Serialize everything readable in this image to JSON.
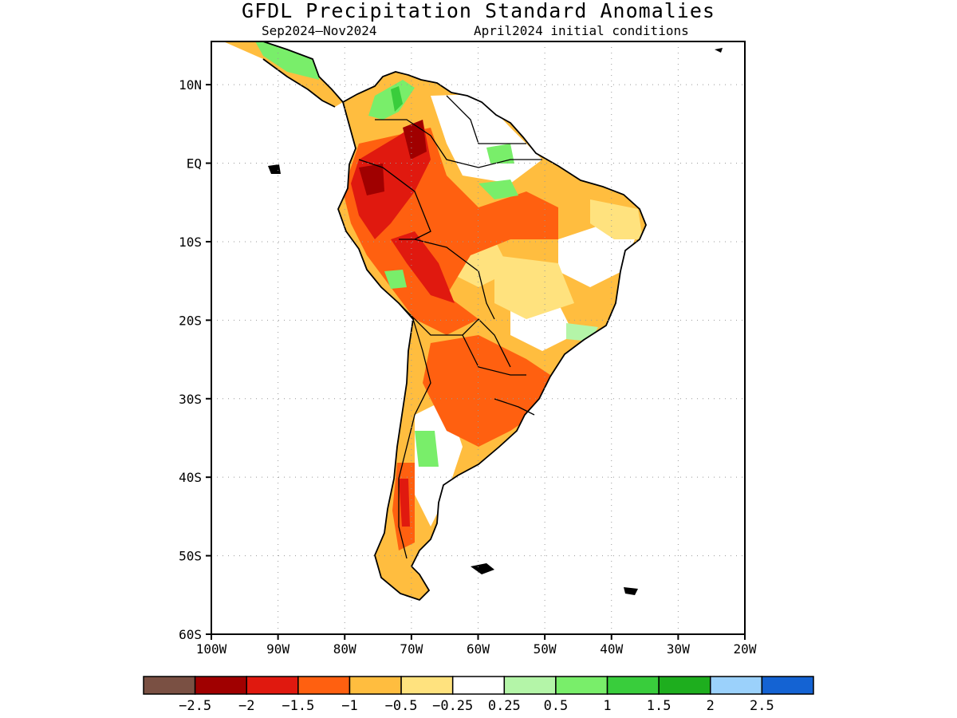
{
  "header": {
    "title": "GFDL Precipitation Standard Anomalies",
    "period": "Sep2024–Nov2024",
    "init": "April2024 initial conditions"
  },
  "axes": {
    "lat_labels": [
      "10N",
      "EQ",
      "10S",
      "20S",
      "30S",
      "40S",
      "50S",
      "60S"
    ],
    "lon_labels": [
      "100W",
      "90W",
      "80W",
      "70W",
      "60W",
      "50W",
      "40W",
      "30W",
      "20W"
    ],
    "lat_range": [
      -60,
      15.5
    ],
    "lon_range": [
      -100,
      -20
    ]
  },
  "colorbar": {
    "colors": [
      "#7a5043",
      "#a00000",
      "#e0190f",
      "#ff6010",
      "#ffbd3f",
      "#ffe27e",
      "#ffffff",
      "#b4f5a8",
      "#79ee6a",
      "#39cd3c",
      "#1eae1e",
      "#9bd1fb",
      "#1463d3"
    ],
    "labels": [
      "-2.5",
      "-2",
      "-1.5",
      "-1",
      "-0.5",
      "-0.25",
      "0.25",
      "0.5",
      "1",
      "1.5",
      "2",
      "2.5"
    ]
  },
  "map": {
    "region": "South America",
    "colors": {
      "dark_red": "#a00000",
      "red": "#e0190f",
      "orange": "#ff6010",
      "light_orange": "#ffbd3f",
      "yellow": "#ffe27e",
      "light_green": "#b4f5a8",
      "green": "#79ee6a",
      "mid_green": "#39cd3c"
    }
  }
}
